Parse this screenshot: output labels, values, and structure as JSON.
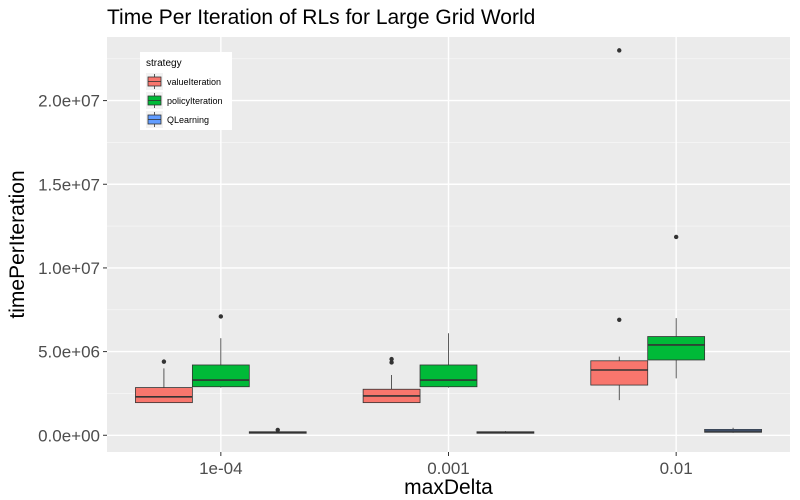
{
  "chart_data": {
    "type": "boxplot",
    "title": "Time Per Iteration of RLs for Large Grid World",
    "xlabel": "maxDelta",
    "ylabel": "timePerIteration",
    "categories": [
      "1e-04",
      "0.001",
      "0.01"
    ],
    "ylim": [
      -1000000,
      23800000
    ],
    "yticks": [
      0,
      5000000,
      10000000,
      15000000,
      20000000
    ],
    "ytick_labels": [
      "0.0e+00",
      "5.0e+06",
      "1.0e+07",
      "1.5e+07",
      "2.0e+07"
    ],
    "grid": true,
    "legend": {
      "title": "strategy",
      "position": "top-left-inside"
    },
    "series": [
      {
        "name": "valueIteration",
        "color": "#F8766D",
        "boxes": [
          {
            "whisker_low": 1950000,
            "q1": 1950000,
            "median": 2300000,
            "q3": 2850000,
            "whisker_high": 4000000,
            "outliers": [
              4400000
            ]
          },
          {
            "whisker_low": 1950000,
            "q1": 1950000,
            "median": 2350000,
            "q3": 2750000,
            "whisker_high": 3600000,
            "outliers": [
              4350000,
              4550000
            ]
          },
          {
            "whisker_low": 2100000,
            "q1": 3000000,
            "median": 3900000,
            "q3": 4450000,
            "whisker_high": 4700000,
            "outliers": [
              6900000,
              23000000
            ]
          }
        ]
      },
      {
        "name": "policyIteration",
        "color": "#00BA38",
        "boxes": [
          {
            "whisker_low": 2850000,
            "q1": 2900000,
            "median": 3300000,
            "q3": 4200000,
            "whisker_high": 5800000,
            "outliers": [
              7100000
            ]
          },
          {
            "whisker_low": 2850000,
            "q1": 2900000,
            "median": 3300000,
            "q3": 4200000,
            "whisker_high": 6100000,
            "outliers": []
          },
          {
            "whisker_low": 3400000,
            "q1": 4500000,
            "median": 5400000,
            "q3": 5900000,
            "whisker_high": 7000000,
            "outliers": [
              11850000
            ]
          }
        ]
      },
      {
        "name": "QLearning",
        "color": "#619CFF",
        "boxes": [
          {
            "whisker_low": 150000,
            "q1": 150000,
            "median": 180000,
            "q3": 210000,
            "whisker_high": 260000,
            "outliers": [
              320000
            ]
          },
          {
            "whisker_low": 140000,
            "q1": 150000,
            "median": 180000,
            "q3": 210000,
            "whisker_high": 250000,
            "outliers": []
          },
          {
            "whisker_low": 150000,
            "q1": 180000,
            "median": 250000,
            "q3": 350000,
            "whisker_high": 450000,
            "outliers": []
          }
        ]
      }
    ]
  }
}
